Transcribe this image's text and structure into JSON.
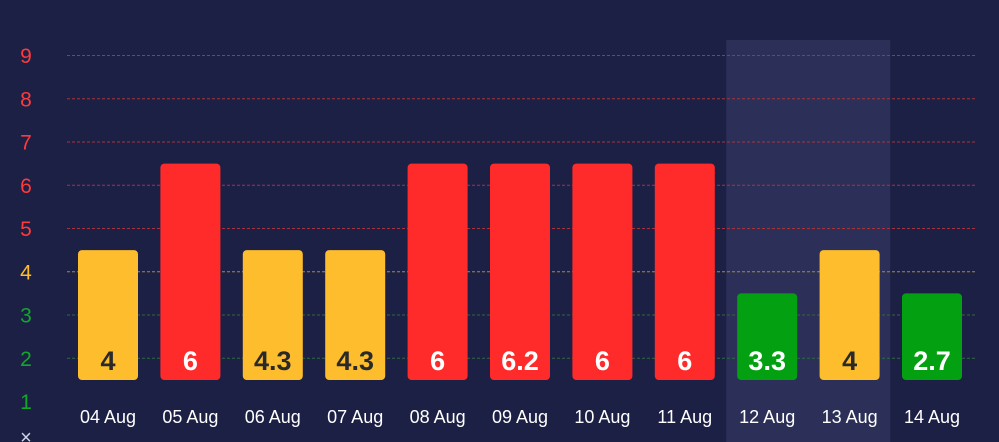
{
  "colors": {
    "background": "#1d2045",
    "highlight_band": "#2c3058",
    "grid_red": "#a8323a",
    "grid_yellow": "#a88c32",
    "grid_green": "#2f6a3a",
    "red": "#ff2b2b",
    "yellow": "#fdbd2c",
    "green": "#03a112",
    "label_dark": "#2a2a2a",
    "label_light": "#ffffff",
    "tick_red": "#ff3a3a",
    "tick_yellow": "#fdbd2c",
    "tick_green": "#0fa82a",
    "x_tick": "#ffffff"
  },
  "chart_data": {
    "type": "bar",
    "categories": [
      "04 Aug",
      "05 Aug",
      "06 Aug",
      "07 Aug",
      "08 Aug",
      "09 Aug",
      "10 Aug",
      "11 Aug",
      "12 Aug",
      "13 Aug",
      "14 Aug"
    ],
    "values": [
      4,
      6,
      4.3,
      4.3,
      6,
      6.2,
      6,
      6,
      3.3,
      4,
      2.7
    ],
    "value_labels": [
      "4",
      "6",
      "4.3",
      "4.3",
      "6",
      "6.2",
      "6",
      "6",
      "3.3",
      "4",
      "2.7"
    ],
    "bar_levels": [
      4,
      6,
      4,
      4,
      6,
      6,
      6,
      6,
      3,
      4,
      3
    ],
    "bar_colors": [
      "yellow",
      "red",
      "yellow",
      "yellow",
      "red",
      "red",
      "red",
      "red",
      "green",
      "yellow",
      "green"
    ],
    "label_colors": [
      "label_dark",
      "label_light",
      "label_dark",
      "label_dark",
      "label_light",
      "label_light",
      "label_light",
      "label_light",
      "label_light",
      "label_dark",
      "label_light"
    ],
    "y_ticks": [
      {
        "value": 1,
        "label": "1",
        "color": "tick_green"
      },
      {
        "value": 2,
        "label": "2",
        "color": "tick_green"
      },
      {
        "value": 3,
        "label": "3",
        "color": "tick_green"
      },
      {
        "value": 4,
        "label": "4",
        "color": "tick_yellow"
      },
      {
        "value": 5,
        "label": "5",
        "color": "tick_red"
      },
      {
        "value": 6,
        "label": "6",
        "color": "tick_red"
      },
      {
        "value": 7,
        "label": "7",
        "color": "tick_red"
      },
      {
        "value": 8,
        "label": "8",
        "color": "tick_red"
      },
      {
        "value": 9,
        "label": "9",
        "color": "tick_red"
      }
    ],
    "ylim": [
      1,
      9
    ],
    "highlighted_category": "12 Aug",
    "bottom_marker": "×",
    "grid": true,
    "title": "",
    "xlabel": "",
    "ylabel": ""
  }
}
